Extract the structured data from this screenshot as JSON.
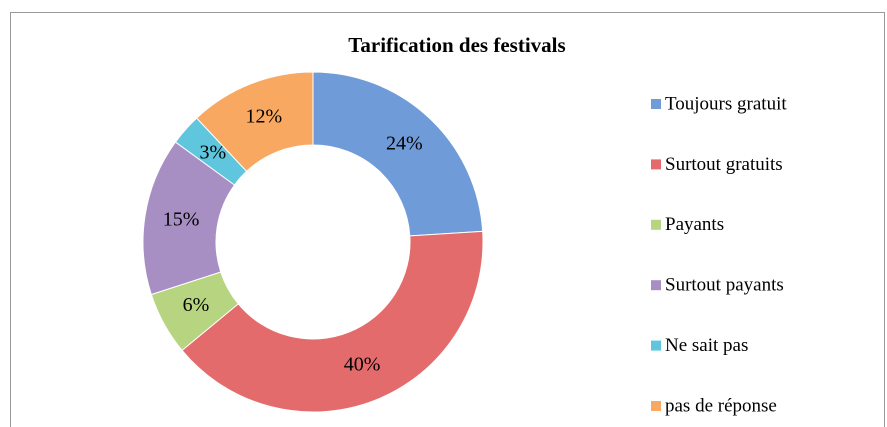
{
  "chart_data": {
    "type": "donut",
    "title": "Tarification des festivals",
    "categories": [
      "Toujours gratuit",
      "Surtout gratuits",
      "Payants",
      "Surtout payants",
      "Ne sait pas",
      "pas de réponse"
    ],
    "values": [
      24,
      40,
      6,
      15,
      3,
      12
    ],
    "value_labels": [
      "24%",
      "40%",
      "6%",
      "15%",
      "3%",
      "12%"
    ],
    "colors": [
      "#6f9bd8",
      "#e36b6b",
      "#b7d581",
      "#a78fc4",
      "#5fc6de",
      "#f8a861"
    ],
    "legend": "right"
  }
}
